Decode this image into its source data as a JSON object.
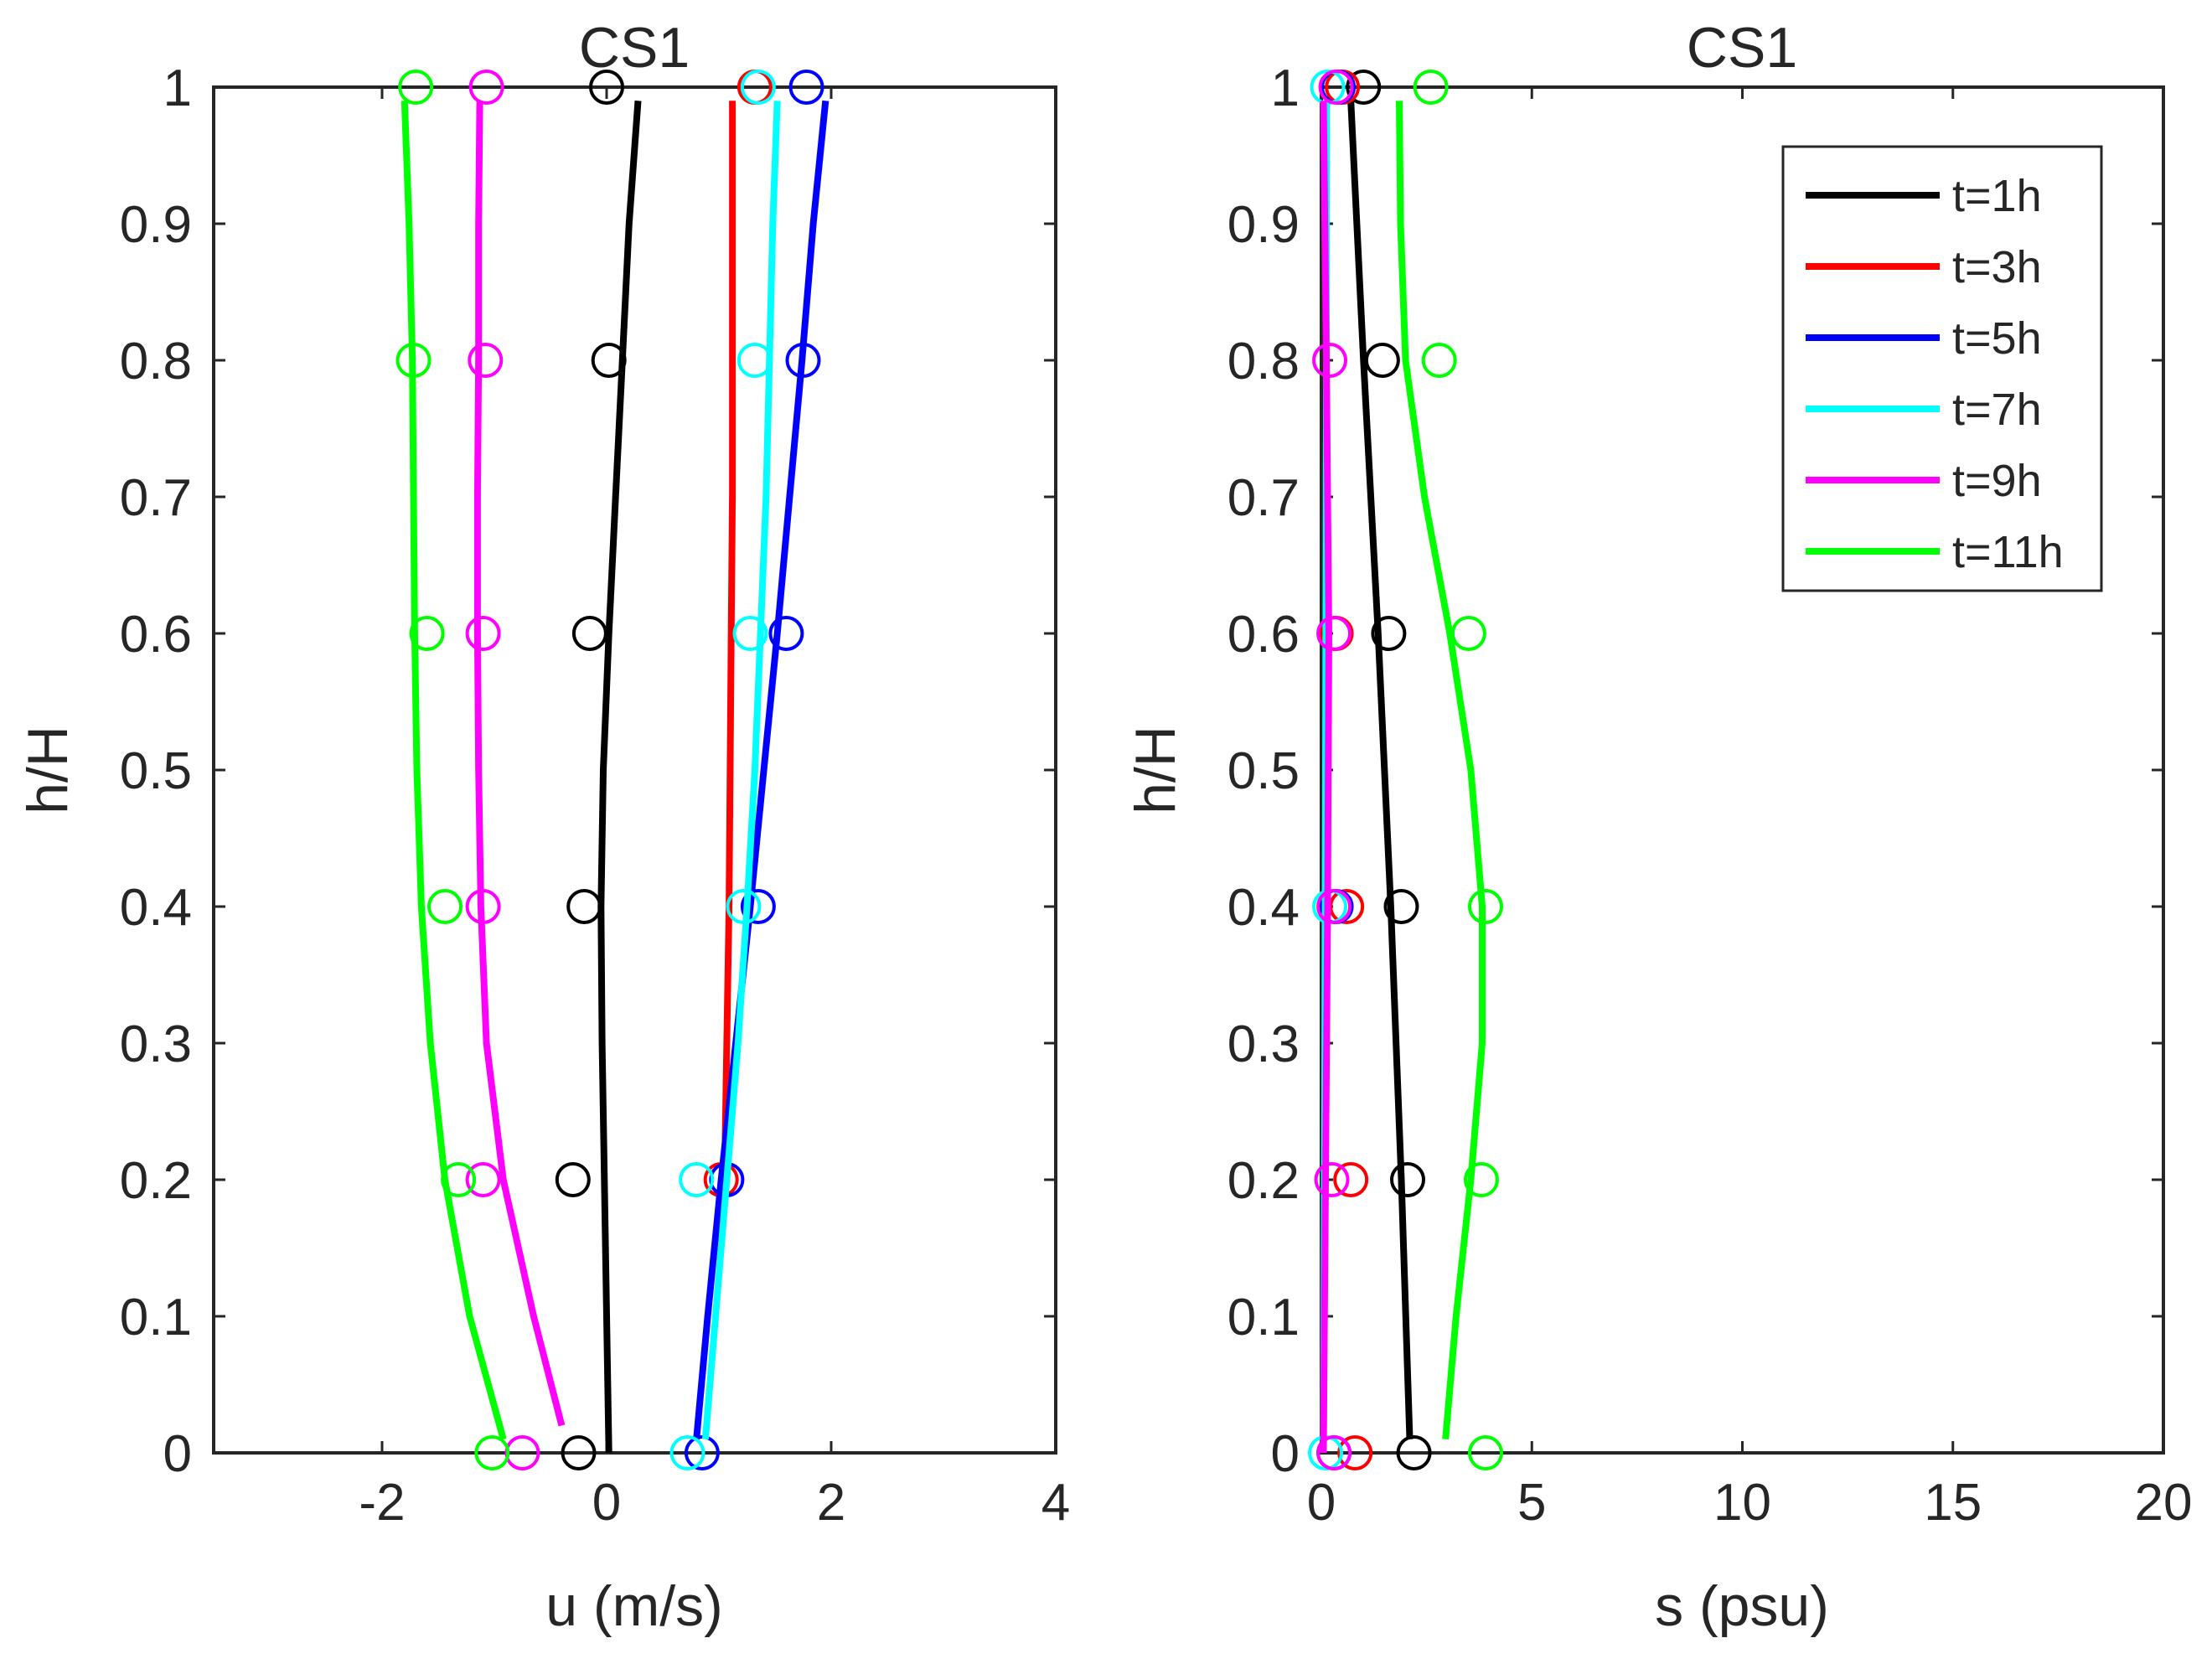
{
  "chart_data": [
    {
      "type": "line",
      "title": "CS1",
      "xlabel": "u (m/s)",
      "ylabel": "h/H",
      "xlim": [
        -3.5,
        4
      ],
      "ylim": [
        0,
        1
      ],
      "xticks": [
        "-2",
        "0",
        "2",
        "4"
      ],
      "xtick_values": [
        -2,
        0,
        2,
        4
      ],
      "yticks": [
        "0",
        "0.1",
        "0.2",
        "0.3",
        "0.4",
        "0.5",
        "0.6",
        "0.7",
        "0.8",
        "0.9",
        "1"
      ],
      "ytick_values": [
        0,
        0.1,
        0.2,
        0.3,
        0.4,
        0.5,
        0.6,
        0.7,
        0.8,
        0.9,
        1
      ],
      "series": [
        {
          "name": "t=1h",
          "color": "#000000",
          "line": {
            "h": [
              0,
              0.1,
              0.2,
              0.3,
              0.4,
              0.5,
              0.6,
              0.7,
              0.8,
              0.9,
              0.99
            ],
            "x": [
              0.02,
              0.0,
              -0.02,
              -0.04,
              -0.05,
              -0.03,
              0.02,
              0.08,
              0.14,
              0.2,
              0.28
            ]
          },
          "points": {
            "h": [
              0,
              0.2,
              0.4,
              0.6,
              0.8,
              1
            ],
            "x": [
              -0.25,
              -0.3,
              -0.2,
              -0.15,
              0.02,
              0.0
            ]
          }
        },
        {
          "name": "t=3h",
          "color": "#ff0000",
          "line": {
            "h": [
              0.2,
              0.3,
              0.4,
              0.5,
              0.6,
              0.7,
              0.8,
              0.9,
              0.99
            ],
            "x": [
              1.05,
              1.07,
              1.09,
              1.1,
              1.11,
              1.12,
              1.12,
              1.12,
              1.12
            ]
          },
          "points": {
            "h": [
              0.2,
              1
            ],
            "x": [
              1.02,
              1.32
            ]
          }
        },
        {
          "name": "t=5h",
          "color": "#0000ff",
          "line": {
            "h": [
              0.01,
              0.1,
              0.2,
              0.3,
              0.4,
              0.5,
              0.6,
              0.7,
              0.8,
              0.9,
              0.99
            ],
            "x": [
              0.8,
              0.9,
              1.02,
              1.15,
              1.28,
              1.4,
              1.52,
              1.63,
              1.74,
              1.84,
              1.95
            ]
          },
          "points": {
            "h": [
              0,
              0.2,
              0.4,
              0.6,
              0.8,
              1
            ],
            "x": [
              0.85,
              1.07,
              1.35,
              1.6,
              1.75,
              1.78
            ]
          }
        },
        {
          "name": "t=7h",
          "color": "#00ffff",
          "line": {
            "h": [
              0.01,
              0.1,
              0.2,
              0.3,
              0.4,
              0.5,
              0.6,
              0.7,
              0.8,
              0.9,
              0.99
            ],
            "x": [
              0.88,
              0.97,
              1.07,
              1.17,
              1.25,
              1.32,
              1.37,
              1.42,
              1.45,
              1.48,
              1.52
            ]
          },
          "points": {
            "h": [
              0,
              0.2,
              0.4,
              0.6,
              0.8,
              1
            ],
            "x": [
              0.72,
              0.8,
              1.22,
              1.28,
              1.32,
              1.35
            ]
          }
        },
        {
          "name": "t=9h",
          "color": "#ff00ff",
          "line": {
            "h": [
              0.02,
              0.1,
              0.2,
              0.3,
              0.4,
              0.5,
              0.6,
              0.7,
              0.8,
              0.9,
              0.99
            ],
            "x": [
              -0.4,
              -0.65,
              -0.92,
              -1.07,
              -1.12,
              -1.14,
              -1.15,
              -1.15,
              -1.14,
              -1.14,
              -1.13
            ]
          },
          "points": {
            "h": [
              0,
              0.2,
              0.4,
              0.6,
              0.8,
              1
            ],
            "x": [
              -0.75,
              -1.1,
              -1.1,
              -1.1,
              -1.08,
              -1.07
            ]
          }
        },
        {
          "name": "t=11h",
          "color": "#00ff00",
          "line": {
            "h": [
              0.01,
              0.1,
              0.2,
              0.3,
              0.4,
              0.5,
              0.6,
              0.7,
              0.8,
              0.9,
              0.99
            ],
            "x": [
              -0.92,
              -1.22,
              -1.44,
              -1.57,
              -1.65,
              -1.69,
              -1.71,
              -1.72,
              -1.73,
              -1.76,
              -1.8
            ]
          },
          "points": {
            "h": [
              0,
              0.2,
              0.4,
              0.6,
              0.8,
              1
            ],
            "x": [
              -1.02,
              -1.32,
              -1.44,
              -1.6,
              -1.72,
              -1.7
            ]
          }
        }
      ]
    },
    {
      "type": "line",
      "title": "CS1",
      "xlabel": "s (psu)",
      "ylabel": "h/H",
      "xlim": [
        0,
        20
      ],
      "ylim": [
        0,
        1
      ],
      "xticks": [
        "0",
        "5",
        "10",
        "15",
        "20"
      ],
      "xtick_values": [
        0,
        5,
        10,
        15,
        20
      ],
      "yticks": [
        "0",
        "0.1",
        "0.2",
        "0.3",
        "0.4",
        "0.5",
        "0.6",
        "0.7",
        "0.8",
        "0.9",
        "1"
      ],
      "ytick_values": [
        0,
        0.1,
        0.2,
        0.3,
        0.4,
        0.5,
        0.6,
        0.7,
        0.8,
        0.9,
        1
      ],
      "legend": {
        "position": "top-right"
      },
      "series": [
        {
          "name": "t=1h",
          "color": "#000000",
          "line": {
            "h": [
              0.01,
              0.2,
              0.4,
              0.6,
              0.8,
              0.99
            ],
            "x": [
              2.1,
              1.9,
              1.65,
              1.35,
              1.0,
              0.7
            ]
          },
          "points": {
            "h": [
              0,
              0.2,
              0.4,
              0.6,
              0.8,
              1
            ],
            "x": [
              2.2,
              2.05,
              1.9,
              1.6,
              1.45,
              1.0
            ]
          }
        },
        {
          "name": "t=3h",
          "color": "#ff0000",
          "line": {
            "h": [],
            "x": []
          },
          "points": {
            "h": [
              0,
              0.2,
              0.4,
              0.6,
              1
            ],
            "x": [
              0.8,
              0.7,
              0.6,
              0.35,
              0.5
            ]
          }
        },
        {
          "name": "t=5h",
          "color": "#0000ff",
          "line": {
            "h": [],
            "x": []
          },
          "points": {
            "h": [
              0,
              0.4,
              1
            ],
            "x": [
              0.3,
              0.35,
              0.4
            ]
          }
        },
        {
          "name": "t=7h",
          "color": "#00ffff",
          "line": {
            "h": [
              0.0,
              0.25,
              0.5,
              0.75,
              0.99
            ],
            "x": [
              0.05,
              0.08,
              0.1,
              0.12,
              0.12
            ]
          },
          "points": {
            "h": [
              0,
              0.4,
              1
            ],
            "x": [
              0.1,
              0.2,
              0.15
            ]
          }
        },
        {
          "name": "t=9h",
          "color": "#ff00ff",
          "line": {
            "h": [
              0.0,
              0.2,
              0.4,
              0.6,
              0.8,
              0.99
            ],
            "x": [
              0.05,
              0.1,
              0.15,
              0.18,
              0.12,
              0.05
            ]
          },
          "points": {
            "h": [
              0,
              0.2,
              0.4,
              0.6,
              0.8,
              1
            ],
            "x": [
              0.3,
              0.25,
              0.3,
              0.3,
              0.2,
              0.35
            ]
          }
        },
        {
          "name": "t=11h",
          "color": "#00ff00",
          "line": {
            "h": [
              0.01,
              0.1,
              0.2,
              0.3,
              0.4,
              0.5,
              0.6,
              0.7,
              0.8,
              0.9,
              0.99
            ],
            "x": [
              2.95,
              3.2,
              3.55,
              3.82,
              3.82,
              3.55,
              3.05,
              2.45,
              2.0,
              1.88,
              1.85
            ]
          },
          "points": {
            "h": [
              0,
              0.2,
              0.4,
              0.6,
              0.8,
              1
            ],
            "x": [
              3.9,
              3.8,
              3.9,
              3.5,
              2.8,
              2.6
            ]
          }
        }
      ]
    }
  ]
}
